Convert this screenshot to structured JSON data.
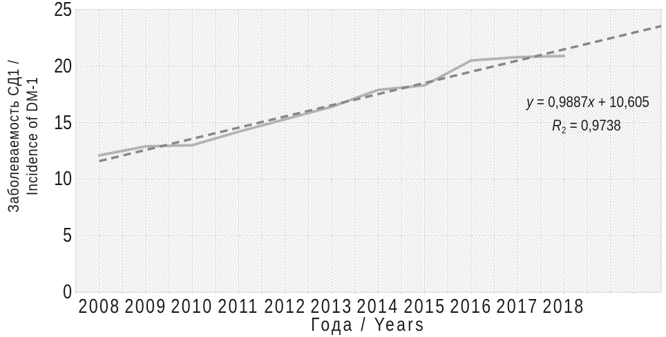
{
  "axes": {
    "x_title": "Года / Years",
    "y_title_line1": "Заболеваемость СД1 /",
    "y_title_line2": "Incidence of DM-1",
    "x_ticks": [
      "2008",
      "2009",
      "2010",
      "2011",
      "2012",
      "2013",
      "2014",
      "2015",
      "2016",
      "2017",
      "2018"
    ],
    "y_ticks": [
      "0",
      "5",
      "10",
      "15",
      "20",
      "25"
    ]
  },
  "equation": {
    "line1": {
      "y_var": "y",
      "mid": " = 0,9887",
      "x_var": "x",
      "tail": " + 10,605"
    },
    "line2": {
      "r_var": "R",
      "r_sub": "2",
      "tail": " = 0,9738"
    }
  },
  "colors": {
    "text": "#1a1a1a",
    "gridline": "#d9d9d9",
    "hatch": "#dcdcdc",
    "solid_series": "#b3b3b6",
    "dashed_trend": "#87878a",
    "plot_background": "#ffffff"
  },
  "chart_data": {
    "type": "line",
    "title": "",
    "xlabel": "Года / Years",
    "ylabel": "Заболеваемость СД1 / Incidence of DM-1",
    "x": [
      2008,
      2009,
      2010,
      2011,
      2012,
      2013,
      2014,
      2015,
      2016,
      2017,
      2018
    ],
    "series": [
      {
        "name": "incidence-of-dm1-solid-line",
        "values": [
          12.1,
          12.9,
          13.0,
          14.2,
          15.3,
          16.4,
          17.9,
          18.3,
          20.5,
          20.8,
          20.9
        ],
        "line_style": "solid",
        "color": "#b3b3b6"
      },
      {
        "name": "linear-trend-dashed-line",
        "slope": 0.9887,
        "intercept": 10.605,
        "r_squared": 0.9738,
        "x_index_start": 1,
        "x_index_end": 13.09,
        "equation_text": "y = 0,9887x + 10,605",
        "r_squared_text": "R₂ = 0,9738",
        "line_style": "dashed",
        "color": "#87878a"
      }
    ],
    "ylim": [
      0,
      25
    ],
    "y_tick_step": 5,
    "x_axis_year_start": 2007.5,
    "x_axis_year_end": 2020.09,
    "x_grid_step_years": 0.5,
    "grid": true,
    "legend": false,
    "plot_background": "diagonal-hatch"
  }
}
